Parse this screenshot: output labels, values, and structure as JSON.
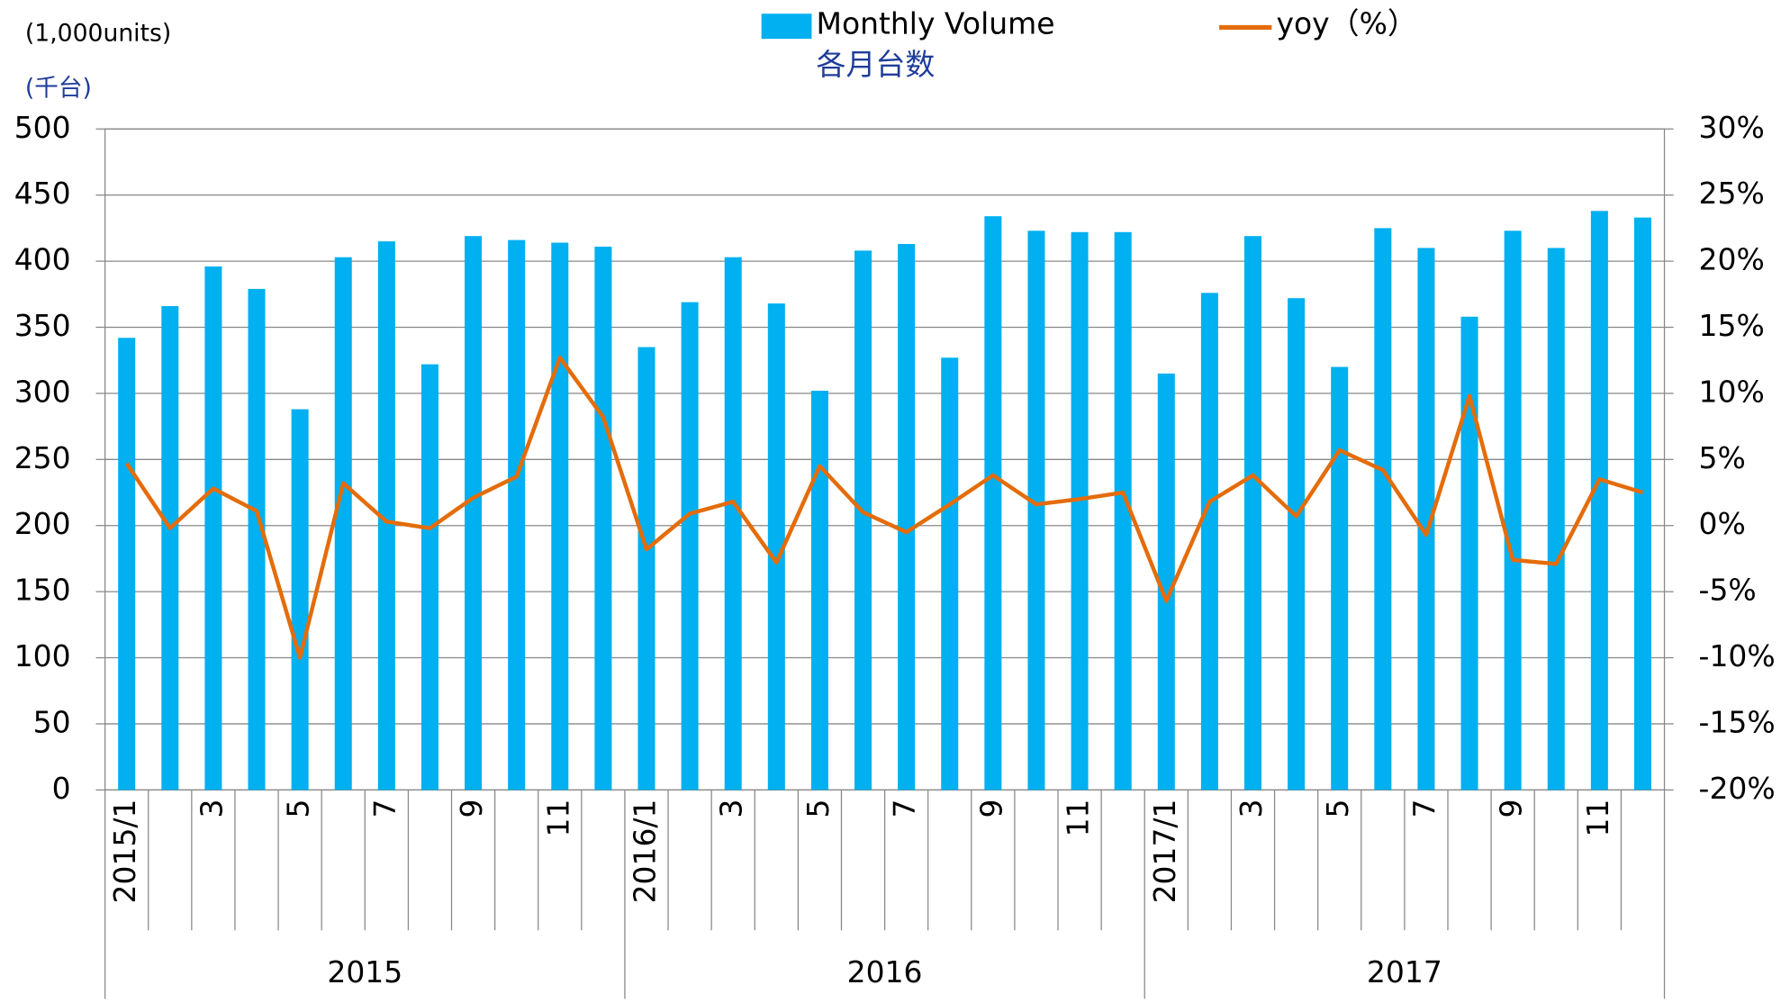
{
  "chart_data": {
    "type": "bar_line",
    "y_unit_label": "(1,000units)",
    "y_unit_label_ja": "(千台)",
    "legend_note": "各月台数",
    "categories": [
      "2015/1",
      null,
      "3",
      null,
      "5",
      null,
      "7",
      null,
      "9",
      null,
      "11",
      null,
      "2016/1",
      null,
      "3",
      null,
      "5",
      null,
      "7",
      null,
      "9",
      null,
      "11",
      null,
      "2017/1",
      null,
      "3",
      null,
      "5",
      null,
      "7",
      null,
      "9",
      null,
      "11",
      null
    ],
    "years": [
      "2015",
      "2016",
      "2017"
    ],
    "series": [
      {
        "name": "Monthly Volume",
        "color": "#00b0f0",
        "kind": "bar",
        "values": [
          342,
          366,
          396,
          379,
          288,
          403,
          415,
          322,
          419,
          416,
          414,
          411,
          335,
          369,
          403,
          368,
          302,
          408,
          413,
          327,
          434,
          423,
          422,
          422,
          315,
          376,
          419,
          372,
          320,
          425,
          410,
          358,
          423,
          410,
          438,
          433
        ]
      },
      {
        "name": "yoy（%）",
        "color": "#e46c0a",
        "kind": "line",
        "axis": "y2",
        "values": [
          4.7,
          -0.2,
          2.8,
          1.1,
          -10,
          3.2,
          0.3,
          -0.2,
          2.1,
          3.7,
          12.7,
          8.2,
          -1.8,
          0.9,
          1.8,
          -2.8,
          4.5,
          1.0,
          -0.5,
          1.6,
          3.8,
          1.6,
          2.0,
          2.5,
          -5.7,
          1.8,
          3.8,
          0.7,
          5.7,
          4.2,
          -0.7,
          9.8,
          -2.6,
          -2.9,
          3.5,
          2.5
        ]
      }
    ],
    "ylim": [
      0,
      500
    ],
    "yticks": [
      0,
      50,
      100,
      150,
      200,
      250,
      300,
      350,
      400,
      450,
      500
    ],
    "y2lim": [
      -20,
      30
    ],
    "y2ticks": [
      {
        "value": -20,
        "label": "-20%"
      },
      {
        "value": -15,
        "label": "-15%"
      },
      {
        "value": -10,
        "label": "-10%"
      },
      {
        "value": -5,
        "label": "-5%"
      },
      {
        "value": 0,
        "label": "0%"
      },
      {
        "value": 5,
        "label": "5%"
      },
      {
        "value": 10,
        "label": "10%"
      },
      {
        "value": 15,
        "label": "15%"
      },
      {
        "value": 20,
        "label": "20%"
      },
      {
        "value": 25,
        "label": "25%"
      },
      {
        "value": 30,
        "label": "30%"
      }
    ],
    "grid": true
  }
}
